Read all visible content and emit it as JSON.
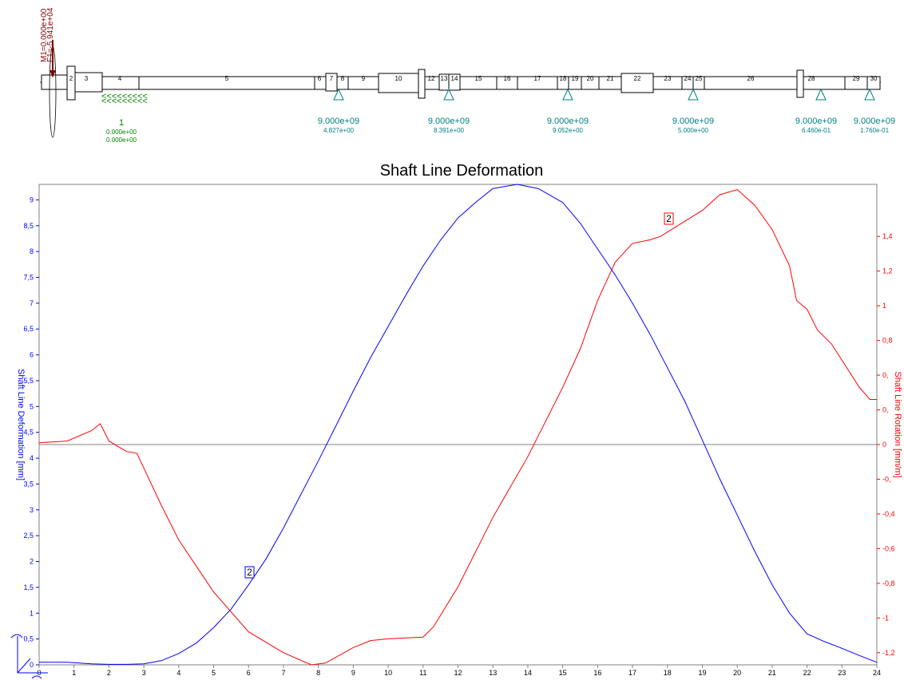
{
  "schematic": {
    "load_labels": [
      "F1=-5.941e+04",
      "M1=0.000e+00"
    ],
    "element_numbers": [
      "2",
      "3",
      "4",
      "5",
      "6",
      "7",
      "8",
      "9",
      "10",
      "12",
      "13",
      "14",
      "15",
      "16",
      "17",
      "18",
      "19",
      "20",
      "21",
      "22",
      "23",
      "24",
      "25",
      "26",
      "28",
      "29",
      "30"
    ],
    "fixed_support": {
      "label": "1",
      "values": [
        "0.000e+00",
        "0.000e+00"
      ]
    },
    "bearings": [
      {
        "stiffness": "9.000e+09",
        "value": "4.827e+00"
      },
      {
        "stiffness": "9.000e+09",
        "value": "8.391e+00"
      },
      {
        "stiffness": "9.000e+09",
        "value": "9.052e+00"
      },
      {
        "stiffness": "9.000e+09",
        "value": "5.000e+00"
      },
      {
        "stiffness": "9.000e+09",
        "value": "6.460e-01"
      },
      {
        "stiffness": "9.000e+09",
        "value": "1.760e-01"
      }
    ]
  },
  "colors": {
    "deformation": "#0000ff",
    "rotation": "#ff0000",
    "support": "#008000",
    "bearing": "#008080",
    "load": "#800000"
  },
  "chart_data": {
    "type": "line",
    "title": "Shaft Line Deformation",
    "ylabel": "Shaft Line Deformation [mm]",
    "y2label": "Shaft Line Rotation [mm/m]",
    "xlim": [
      0,
      24
    ],
    "ylim": [
      0,
      9.3
    ],
    "y2lim": [
      -1.27,
      1.5
    ],
    "x_ticks": [
      "0",
      "1",
      "2",
      "3",
      "4",
      "5",
      "6",
      "7",
      "8",
      "9",
      "10",
      "11",
      "12",
      "13",
      "14",
      "15",
      "16",
      "17",
      "18",
      "19",
      "20",
      "21",
      "22",
      "23",
      "24"
    ],
    "y_ticks": [
      "0",
      "0,5",
      "1",
      "1,5",
      "2",
      "2,5",
      "3",
      "3,5",
      "4",
      "4,5",
      "5",
      "5,5",
      "6",
      "6,5",
      "7",
      "7,5",
      "8",
      "8,5",
      "9"
    ],
    "y2_ticks": [
      "-1,2",
      "-1",
      "-0,8",
      "-0,6",
      "-0,4",
      "-0,",
      "0",
      "0,",
      "0,",
      "0,8",
      "1",
      "1,2",
      "1,4"
    ],
    "series": [
      {
        "name": "2",
        "axis": "left",
        "x": [
          0,
          0.8,
          1.5,
          2,
          2.5,
          3,
          3.5,
          4,
          4.5,
          5,
          5.5,
          6,
          6.5,
          7,
          7.5,
          8,
          8.5,
          9,
          9.5,
          10,
          10.5,
          11,
          11.5,
          12,
          12.5,
          13,
          13.7,
          14.3,
          15,
          15.5,
          16,
          16.5,
          17,
          17.5,
          18,
          18.5,
          19,
          19.5,
          20,
          20.5,
          21,
          21.5,
          22,
          22.5,
          23,
          23.5,
          24
        ],
        "values": [
          0.05,
          0.05,
          0.02,
          0.01,
          0.01,
          0.02,
          0.08,
          0.22,
          0.42,
          0.72,
          1.08,
          1.55,
          2.05,
          2.65,
          3.3,
          3.95,
          4.62,
          5.3,
          5.95,
          6.55,
          7.15,
          7.72,
          8.22,
          8.65,
          8.95,
          9.22,
          9.3,
          9.22,
          8.95,
          8.55,
          8.05,
          7.55,
          7.0,
          6.4,
          5.75,
          5.1,
          4.35,
          3.6,
          2.9,
          2.2,
          1.55,
          1.0,
          0.6,
          0.45,
          0.32,
          0.18,
          0.05
        ]
      },
      {
        "name": "2",
        "axis": "right",
        "x": [
          0,
          0.8,
          1.5,
          1.75,
          2,
          2.5,
          2.8,
          3.5,
          4,
          5,
          6,
          7,
          7.8,
          8.2,
          9,
          9.5,
          10,
          11,
          11.3,
          12,
          13,
          14,
          15,
          15.5,
          16,
          16.5,
          17,
          17.5,
          17.8,
          18.2,
          19,
          19.5,
          20,
          20.5,
          21,
          21.5,
          21.7,
          22,
          22.3,
          22.7,
          23.5,
          23.8,
          24
        ],
        "values": [
          0.01,
          0.02,
          0.08,
          0.12,
          0.02,
          -0.04,
          -0.05,
          -0.35,
          -0.55,
          -0.85,
          -1.08,
          -1.2,
          -1.27,
          -1.26,
          -1.17,
          -1.13,
          -1.12,
          -1.11,
          -1.05,
          -0.82,
          -0.42,
          -0.07,
          0.33,
          0.55,
          0.83,
          1.05,
          1.16,
          1.18,
          1.2,
          1.25,
          1.35,
          1.44,
          1.47,
          1.38,
          1.24,
          1.03,
          0.83,
          0.78,
          0.66,
          0.58,
          0.33,
          0.26,
          0.26
        ]
      }
    ]
  }
}
